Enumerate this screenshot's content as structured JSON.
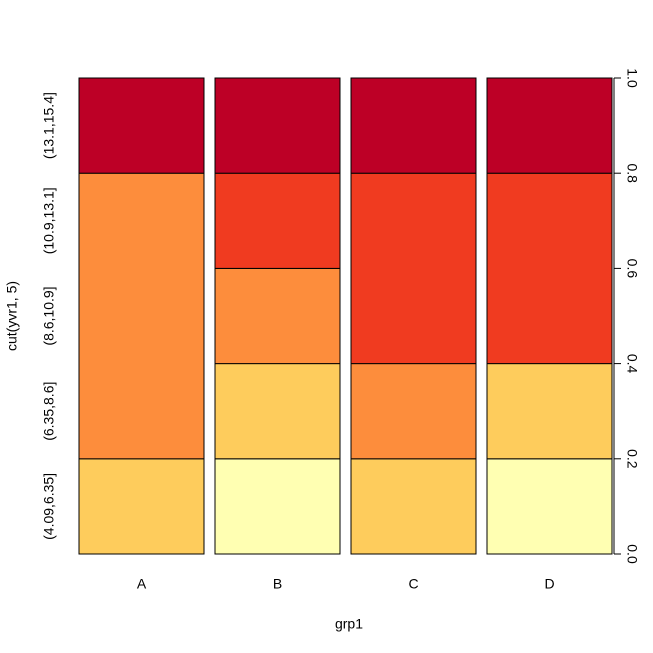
{
  "chart_data": {
    "type": "spineplot",
    "x_label": "grp1",
    "y_label": "cut(yvr1, 5)",
    "categories": [
      "A",
      "B",
      "C",
      "D"
    ],
    "series": [
      {
        "name": "(4.09,6.35]",
        "color": "#FFFFB2",
        "values": [
          0,
          0.2,
          0,
          0.2
        ]
      },
      {
        "name": "(6.35,8.6]",
        "color": "#FECC5C",
        "values": [
          0.2,
          0.2,
          0.2,
          0.2
        ]
      },
      {
        "name": "(8.6,10.9]",
        "color": "#FD8D3C",
        "values": [
          0.6,
          0.2,
          0.2,
          0
        ]
      },
      {
        "name": "(10.9,13.1]",
        "color": "#F03B20",
        "values": [
          0,
          0.2,
          0.4,
          0.4
        ]
      },
      {
        "name": "(13.1,15.4]",
        "color": "#BD0026",
        "values": [
          0.2,
          0.2,
          0.2,
          0.2
        ]
      }
    ],
    "ylim": [
      0,
      1
    ],
    "yticks": [
      {
        "value": 0,
        "label": "0.0"
      },
      0.2,
      0.4,
      0.6,
      0.8,
      {
        "value": 1,
        "label": "1.0"
      }
    ]
  }
}
